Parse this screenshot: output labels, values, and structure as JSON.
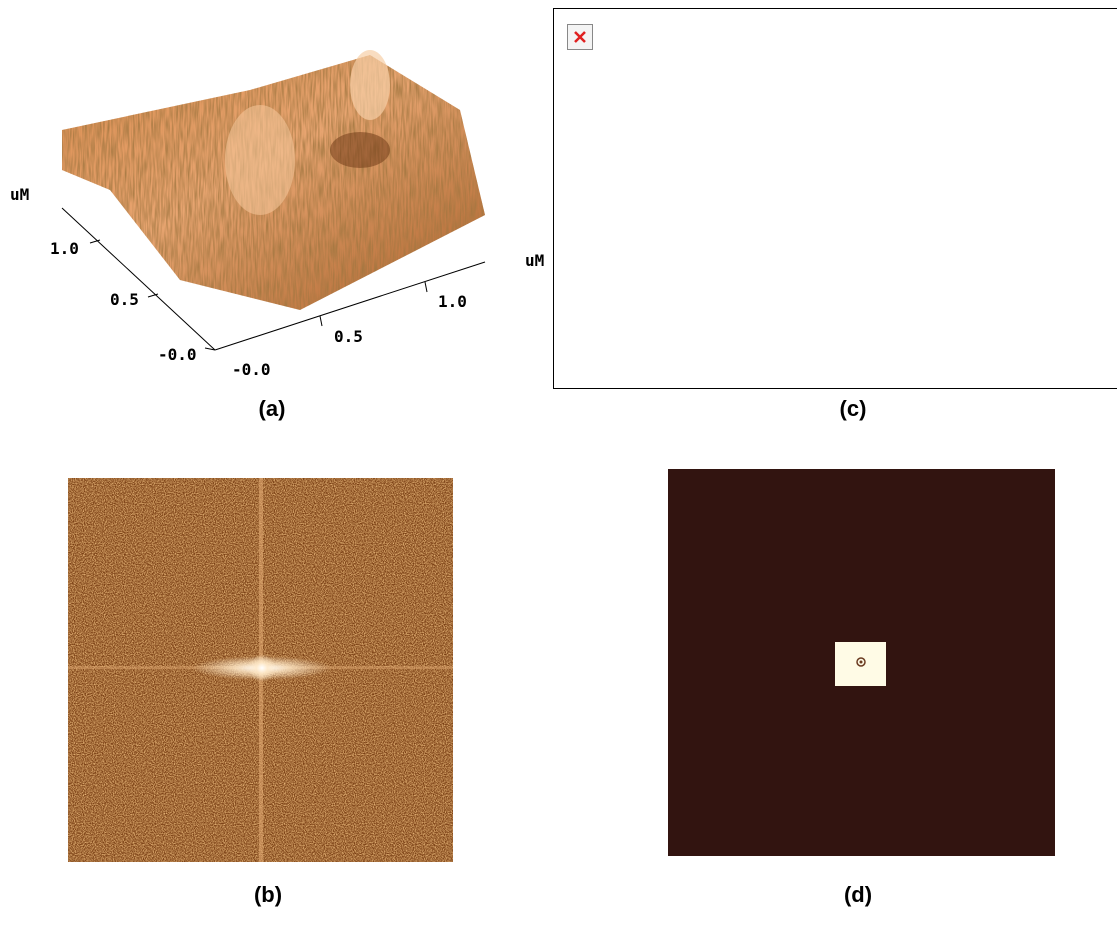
{
  "panels": [
    {
      "label": "(a)",
      "unit": "uM",
      "left_ticks": [
        "1.0",
        "0.5",
        "-0.0"
      ],
      "bottom_ticks": [
        "-0.0",
        "0.5",
        "1.0"
      ]
    },
    {
      "label": "(b)"
    },
    {
      "label": "(c)",
      "unit": "uM"
    },
    {
      "label": "(d)"
    }
  ]
}
